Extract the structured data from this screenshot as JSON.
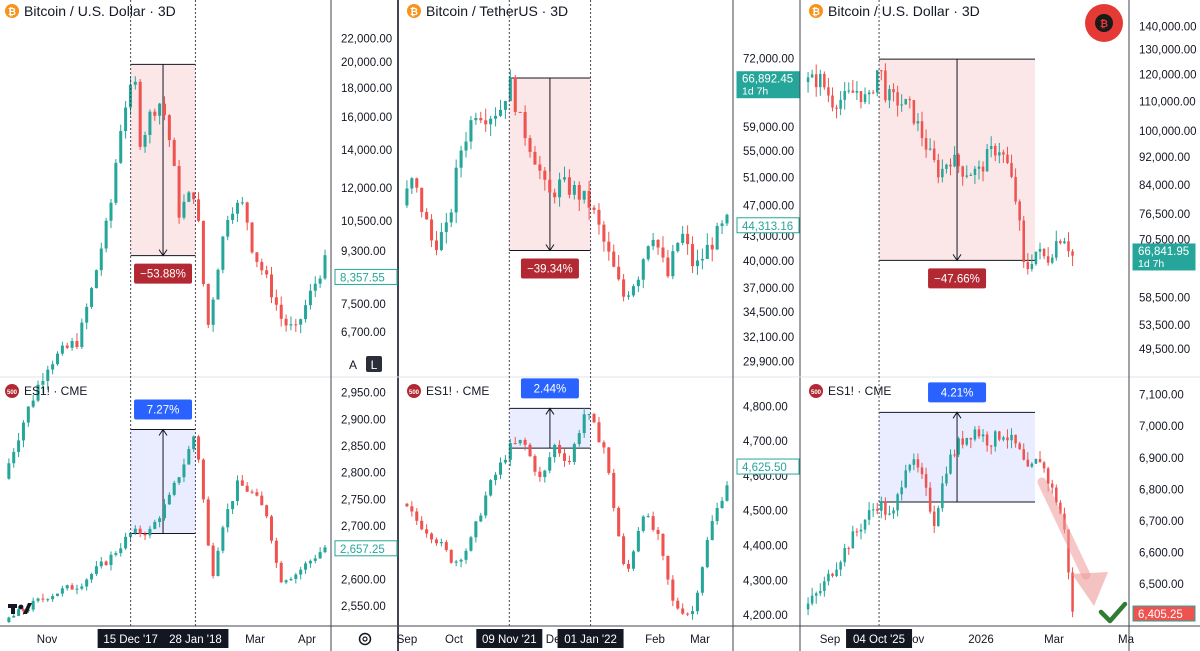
{
  "colors": {
    "up": "#26a69a",
    "down": "#ef5350",
    "drop_fill": "#fbe3e5",
    "rise_fill": "#e8ebff",
    "drop_badge": "#b22833",
    "rise_badge": "#2962ff",
    "axis_text": "#131722",
    "grid": "#f0f3fa"
  },
  "icons": [
    "bitcoin-icon",
    "es-500-icon",
    "tradingview-logo-icon",
    "gear-icon",
    "checkmark-icon",
    "arrow-down-icon"
  ],
  "chart_data": [
    {
      "type": "candlestick",
      "title": "Bitcoin / U.S. Dollar · 3D",
      "y_axis": {
        "scale": "log",
        "ticks": [
          "22,000.00",
          "20,000.00",
          "18,000.00",
          "16,000.00",
          "14,000.00",
          "12,000.00",
          "10,500.00",
          "9,300.00",
          "8,357.55",
          "7,500.00",
          "6,700.00"
        ],
        "range": [
          5700,
          23500
        ]
      },
      "price_label": "8,357.55",
      "x_ticks": [
        "Nov",
        "Mar",
        "Apr"
      ],
      "date_markers": [
        "15 Dec '17",
        "28 Jan '18"
      ],
      "annotation": {
        "label": "−53.88%",
        "from": 19800,
        "to": 9130
      },
      "scale_buttons": [
        "A",
        "L"
      ],
      "x_range": [
        "2017-09-20",
        "2018-04-26"
      ],
      "path": [
        "2017-09-20",
        3700,
        "2017-10-20",
        5900,
        "2017-11-10",
        6500,
        "2017-11-20",
        8200,
        "2017-12-01",
        10900,
        "2017-12-10",
        16400,
        "2017-12-15",
        17800,
        "2017-12-17",
        19500,
        "2017-12-22",
        14000,
        "2017-12-27",
        16000,
        "2018-01-05",
        17100,
        "2018-01-12",
        13800,
        "2018-01-17",
        10800,
        "2018-01-22",
        11500,
        "2018-01-28",
        11800,
        "2018-02-02",
        8300,
        "2018-02-06",
        6800,
        "2018-02-12",
        8700,
        "2018-02-20",
        11100,
        "2018-03-02",
        11200,
        "2018-03-08",
        9300,
        "2018-03-18",
        8200,
        "2018-03-28",
        7000,
        "2018-04-06",
        6700,
        "2018-04-26",
        8900
      ]
    },
    {
      "type": "candlestick",
      "title": "ES1! · CME",
      "y_axis": {
        "scale": "linear",
        "ticks": [
          "2,950.00",
          "2,900.00",
          "2,850.00",
          "2,800.00",
          "2,750.00",
          "2,700.00",
          "2,657.25",
          "2,600.00",
          "2,550.00"
        ],
        "range": [
          2520,
          2970
        ]
      },
      "price_label": "2,657.25",
      "annotation": {
        "label": "7.27%",
        "from": 2686,
        "to": 2881
      },
      "x_range": [
        "2017-09-20",
        "2018-04-26"
      ],
      "path": [
        "2017-09-20",
        2520,
        "2017-10-20",
        2570,
        "2017-11-10",
        2590,
        "2017-12-01",
        2640,
        "2017-12-15",
        2686,
        "2017-12-28",
        2690,
        "2018-01-10",
        2750,
        "2018-01-22",
        2830,
        "2018-01-28",
        2878,
        "2018-02-02",
        2760,
        "2018-02-08",
        2600,
        "2018-02-15",
        2700,
        "2018-02-26",
        2780,
        "2018-03-08",
        2760,
        "2018-03-18",
        2720,
        "2018-03-26",
        2600,
        "2018-04-06",
        2610,
        "2018-04-26",
        2660
      ]
    },
    {
      "type": "candlestick",
      "title": "Bitcoin / TetherUS · 3D",
      "y_axis": {
        "scale": "log",
        "ticks": [
          "72,000.00",
          "66,892.45",
          "59,000.00",
          "55,000.00",
          "51,000.00",
          "47,000.00",
          "44,313.16",
          "43,000.00",
          "40,000.00",
          "37,000.00",
          "34,500.00",
          "32,100.00",
          "29,900.00"
        ],
        "range": [
          29000,
          80000
        ]
      },
      "price_label": "66,892.45",
      "price_label_sub": "1d 7h",
      "price_label_2": "44,313.16",
      "x_ticks": [
        "Sep",
        "Oct",
        "Dec",
        "Feb",
        "Mar"
      ],
      "date_markers": [
        "09 Nov '21",
        "01 Jan '22"
      ],
      "annotation": {
        "label": "−39.34%",
        "from": 68000,
        "to": 41250
      },
      "x_range": [
        "2021-08-31",
        "2022-03-31"
      ],
      "path": [
        "2021-08-31",
        47000,
        "2021-09-07",
        50500,
        "2021-09-20",
        42000,
        "2021-09-30",
        43800,
        "2021-10-08",
        55000,
        "2021-10-18",
        62000,
        "2021-10-26",
        61000,
        "2021-11-04",
        62500,
        "2021-11-09",
        67500,
        "2021-11-16",
        60000,
        "2021-11-26",
        54000,
        "2021-12-04",
        48000,
        "2021-12-12",
        50000,
        "2021-12-22",
        49000,
        "2022-01-01",
        47000,
        "2022-01-10",
        42000,
        "2022-01-22",
        36000,
        "2022-02-01",
        38500,
        "2022-02-10",
        44000,
        "2022-02-20",
        38000,
        "2022-03-01",
        43500,
        "2022-03-10",
        39000,
        "2022-03-20",
        42000,
        "2022-03-31",
        44700
      ]
    },
    {
      "type": "candlestick",
      "title": "ES1! · CME",
      "y_axis": {
        "scale": "linear",
        "ticks": [
          "4,800.00",
          "4,700.00",
          "4,625.50",
          "4,600.00",
          "4,500.00",
          "4,400.00",
          "4,300.00",
          "4,200.00"
        ],
        "range": [
          4180,
          4870
        ]
      },
      "price_label": "4,625.50",
      "annotation": {
        "label": "2.44%",
        "from": 4680,
        "to": 4794
      },
      "x_range": [
        "2021-08-31",
        "2022-03-31"
      ],
      "path": [
        "2021-08-31",
        4520,
        "2021-09-10",
        4470,
        "2021-09-22",
        4420,
        "2021-10-04",
        4350,
        "2021-10-14",
        4400,
        "2021-10-26",
        4560,
        "2021-11-09",
        4680,
        "2021-11-18",
        4700,
        "2021-11-30",
        4580,
        "2021-12-08",
        4690,
        "2021-12-18",
        4640,
        "2021-12-28",
        4780,
        "2022-01-01",
        4760,
        "2022-01-10",
        4680,
        "2022-01-24",
        4300,
        "2022-02-04",
        4500,
        "2022-02-14",
        4420,
        "2022-02-24",
        4230,
        "2022-03-08",
        4200,
        "2022-03-20",
        4450,
        "2022-03-31",
        4580
      ]
    },
    {
      "type": "candlestick",
      "title": "Bitcoin / U.S. Dollar · 3D",
      "y_axis": {
        "scale": "log",
        "ticks": [
          "140,000.00",
          "130,000.00",
          "120,000.00",
          "110,000.00",
          "100,000.00",
          "92,000.00",
          "84,000.00",
          "76,500.00",
          "70,500.00",
          "66,841.95",
          "58,500.00",
          "53,500.00",
          "49,500.00"
        ],
        "range": [
          46000,
          142000
        ]
      },
      "price_label": "66,841.95",
      "price_label_sub": "1d 7h",
      "x_ticks": [
        "Sep",
        "Nov",
        "2026",
        "Mar",
        "Ma"
      ],
      "date_markers": [
        "04 Oct '25"
      ],
      "annotation": {
        "label": "−47.66%",
        "from": 126000,
        "to": 65900
      },
      "x_range": [
        "2025-08-01",
        "2026-04-30"
      ],
      "path": [
        "2025-08-01",
        117000,
        "2025-08-15",
        118000,
        "2025-08-25",
        110000,
        "2025-09-05",
        111000,
        "2025-09-15",
        114000,
        "2025-09-25",
        109500,
        "2025-10-04",
        124000,
        "2025-10-10",
        112000,
        "2025-10-20",
        110000,
        "2025-10-30",
        108000,
        "2025-11-08",
        100000,
        "2025-11-18",
        91000,
        "2025-11-25",
        87000,
        "2025-12-03",
        92000,
        "2025-12-15",
        88000,
        "2025-12-28",
        87500,
        "2026-01-06",
        93000,
        "2026-01-14",
        95000,
        "2026-01-22",
        89000,
        "2026-01-30",
        78000,
        "2026-02-05",
        63000,
        "2026-02-14",
        68000,
        "2026-02-24",
        66000,
        "2026-03-04",
        70000,
        "2026-03-10",
        72000,
        "2026-03-18",
        66842
      ]
    },
    {
      "type": "candlestick",
      "title": "ES1! · CME",
      "y_axis": {
        "scale": "linear",
        "ticks": [
          "7,100.00",
          "7,000.00",
          "6,900.00",
          "6,800.00",
          "6,700.00",
          "6,600.00",
          "6,500.00",
          "6,405.25"
        ],
        "range": [
          6380,
          7140
        ]
      },
      "price_label": "6,405.25",
      "annotation": {
        "label": "4.21%",
        "from": 6760,
        "to": 7044
      },
      "x_range": [
        "2025-08-01",
        "2026-04-30"
      ],
      "path": [
        "2025-08-01",
        6420,
        "2025-08-15",
        6480,
        "2025-08-28",
        6560,
        "2025-09-10",
        6640,
        "2025-09-25",
        6720,
        "2025-10-04",
        6760,
        "2025-10-15",
        6700,
        "2025-10-28",
        6900,
        "2025-11-08",
        6850,
        "2025-11-20",
        6700,
        "2025-12-01",
        6880,
        "2025-12-12",
        6950,
        "2025-12-25",
        6990,
        "2026-01-06",
        6950,
        "2026-01-18",
        6980,
        "2026-01-30",
        6930,
        "2026-02-08",
        6850,
        "2026-02-18",
        6900,
        "2026-02-26",
        6820,
        "2026-03-06",
        6750,
        "2026-03-12",
        6650,
        "2026-03-18",
        6405
      ]
    }
  ]
}
